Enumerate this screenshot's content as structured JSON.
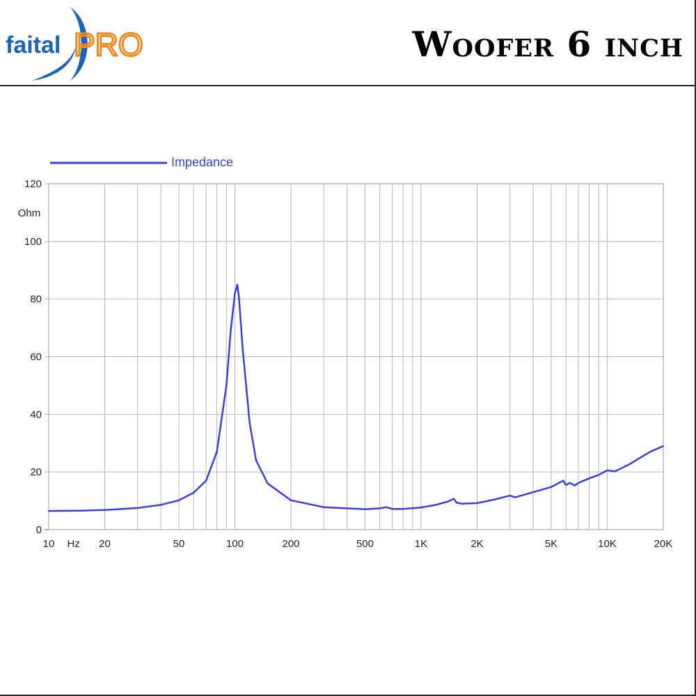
{
  "header": {
    "logo_text_left": "faital",
    "logo_text_right": "PRO",
    "title": "Woofer 6 inch"
  },
  "colors": {
    "logo_blue": "#1f64b4",
    "logo_orange": "#f08a1c",
    "curve": "#3a3fe0",
    "grid": "#b8b8b8"
  },
  "chart_data": {
    "type": "line",
    "xscale": "log",
    "xlim": [
      10,
      20000
    ],
    "ylim": [
      0,
      120
    ],
    "grid": true,
    "legend_placement": "top-left",
    "ylabel": "Ohm",
    "xlabel": "Hz",
    "y_ticks": [
      0,
      20,
      40,
      60,
      80,
      100,
      120
    ],
    "x_tick_labels": [
      {
        "v": 10,
        "t": "10"
      },
      {
        "v": 20,
        "t": "20"
      },
      {
        "v": 50,
        "t": "50"
      },
      {
        "v": 100,
        "t": "100"
      },
      {
        "v": 200,
        "t": "200"
      },
      {
        "v": 500,
        "t": "500"
      },
      {
        "v": 1000,
        "t": "1K"
      },
      {
        "v": 2000,
        "t": "2K"
      },
      {
        "v": 5000,
        "t": "5K"
      },
      {
        "v": 10000,
        "t": "10K"
      },
      {
        "v": 20000,
        "t": "20K"
      }
    ],
    "series": [
      {
        "name": "Impedance",
        "x": [
          10,
          15,
          20,
          30,
          40,
          50,
          60,
          70,
          80,
          90,
          95,
          100,
          103,
          105,
          110,
          120,
          130,
          150,
          200,
          300,
          500,
          600,
          650,
          700,
          800,
          1000,
          1200,
          1400,
          1500,
          1550,
          1650,
          2000,
          2500,
          3000,
          3200,
          4000,
          5000,
          5800,
          6000,
          6300,
          6700,
          7000,
          8000,
          9000,
          10000,
          11000,
          13000,
          16000,
          17000,
          20000
        ],
        "y": [
          6.5,
          6.6,
          6.8,
          7.5,
          8.6,
          10.2,
          12.8,
          17,
          27,
          50,
          69,
          82,
          85,
          81,
          63,
          37,
          24,
          16,
          10.2,
          7.8,
          7.1,
          7.4,
          7.8,
          7.2,
          7.2,
          7.7,
          8.6,
          9.8,
          10.7,
          9.4,
          9,
          9.2,
          10.5,
          11.8,
          11.2,
          13,
          14.8,
          17,
          15.5,
          16.2,
          15.3,
          16.2,
          17.8,
          19,
          20.6,
          20.2,
          22.5,
          26,
          27,
          29
        ]
      }
    ]
  }
}
